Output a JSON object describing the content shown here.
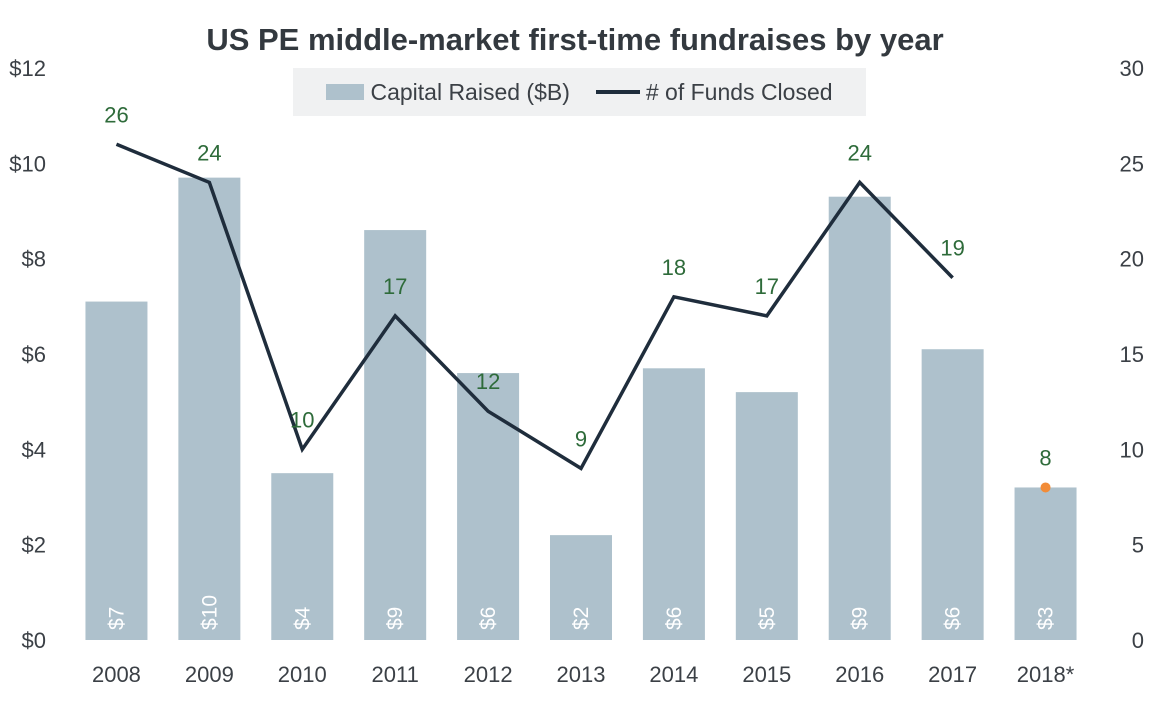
{
  "chart_data": {
    "type": "bar",
    "title": "US PE middle-market first-time fundraises by year",
    "categories": [
      "2008",
      "2009",
      "2010",
      "2011",
      "2012",
      "2013",
      "2014",
      "2015",
      "2016",
      "2017",
      "2018*"
    ],
    "series": [
      {
        "name": "Capital Raised ($B)",
        "type": "bar",
        "axis": "left",
        "values": [
          7.1,
          9.7,
          3.5,
          8.6,
          5.6,
          2.2,
          5.7,
          5.2,
          9.3,
          6.1,
          3.2
        ],
        "labels": [
          "$7",
          "$10",
          "$4",
          "$9",
          "$6",
          "$2",
          "$6",
          "$5",
          "$9",
          "$6",
          "$3"
        ],
        "color": "#aec1cc"
      },
      {
        "name": "# of Funds Closed",
        "type": "line",
        "axis": "right",
        "values": [
          26,
          24,
          10,
          17,
          12,
          9,
          18,
          17,
          24,
          19,
          8
        ],
        "labels": [
          "26",
          "24",
          "10",
          "17",
          "12",
          "9",
          "18",
          "17",
          "24",
          "19",
          "8"
        ],
        "color": "#1f2d3c",
        "label_color": "#2e6b3a",
        "highlight_last_point_color": "#f28c38"
      }
    ],
    "y_left": {
      "range": [
        0,
        12
      ],
      "ticks": [
        "$0",
        "$2",
        "$4",
        "$6",
        "$8",
        "$10",
        "$12"
      ],
      "values": [
        0,
        2,
        4,
        6,
        8,
        10,
        12
      ]
    },
    "y_right": {
      "range": [
        0,
        30
      ],
      "ticks": [
        "0",
        "5",
        "10",
        "15",
        "20",
        "25",
        "30"
      ],
      "values": [
        0,
        5,
        10,
        15,
        20,
        25,
        30
      ]
    },
    "legend_position": "top-center",
    "grid": false
  }
}
